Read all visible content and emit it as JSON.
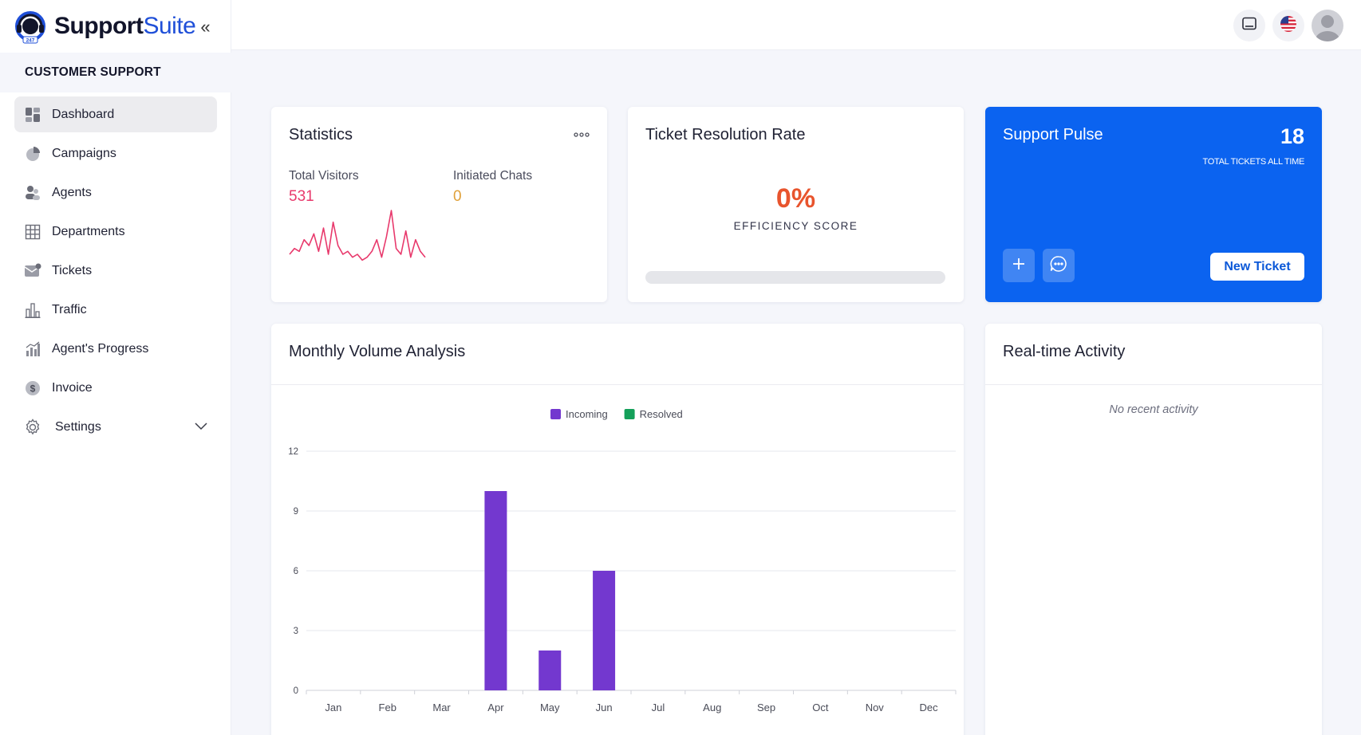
{
  "brand": {
    "name_part1": "Support",
    "name_part2": "Suite",
    "badge": "247"
  },
  "sidebar": {
    "section_title": "CUSTOMER SUPPORT",
    "items": [
      {
        "label": "Dashboard",
        "icon": "dashboard-icon"
      },
      {
        "label": "Campaigns",
        "icon": "pie-chart-icon"
      },
      {
        "label": "Agents",
        "icon": "users-icon"
      },
      {
        "label": "Departments",
        "icon": "grid-icon"
      },
      {
        "label": "Tickets",
        "icon": "envelope-icon"
      },
      {
        "label": "Traffic",
        "icon": "bar-chart-icon"
      },
      {
        "label": "Agent's Progress",
        "icon": "progress-chart-icon"
      },
      {
        "label": "Invoice",
        "icon": "dollar-icon"
      },
      {
        "label": "Settings",
        "icon": "gear-icon"
      }
    ]
  },
  "header": {
    "icons": [
      "tablet-icon",
      "us-flag-icon",
      "user-avatar"
    ]
  },
  "statistics": {
    "title": "Statistics",
    "total_visitors_label": "Total Visitors",
    "total_visitors_value": "531",
    "initiated_chats_label": "Initiated Chats",
    "initiated_chats_value": "0",
    "sparkline": [
      3,
      5,
      4,
      8,
      6,
      10,
      4,
      12,
      3,
      14,
      6,
      3,
      4,
      2,
      3,
      1,
      2,
      4,
      8,
      2,
      9,
      18,
      5,
      3,
      11,
      2,
      8,
      4,
      2
    ]
  },
  "resolution": {
    "title": "Ticket Resolution Rate",
    "value": "0%",
    "label": "EFFICIENCY SCORE",
    "progress_percent": 0
  },
  "pulse": {
    "title": "Support Pulse",
    "total": "18",
    "subtitle": "TOTAL TICKETS ALL TIME",
    "new_ticket_label": "New Ticket"
  },
  "monthly": {
    "title": "Monthly Volume Analysis"
  },
  "activity": {
    "title": "Real-time Activity",
    "empty_text": "No recent activity"
  },
  "colors": {
    "incoming": "#7338cf",
    "resolved": "#14a05a",
    "accent": "#0b63f0",
    "visitors": "#e8396c",
    "chats": "#e0a13a"
  },
  "chart_data": {
    "type": "bar",
    "categories": [
      "Jan",
      "Feb",
      "Mar",
      "Apr",
      "May",
      "Jun",
      "Jul",
      "Aug",
      "Sep",
      "Oct",
      "Nov",
      "Dec"
    ],
    "series": [
      {
        "name": "Incoming",
        "values": [
          0,
          0,
          0,
          10,
          2,
          6,
          0,
          0,
          0,
          0,
          0,
          0
        ]
      },
      {
        "name": "Resolved",
        "values": [
          0,
          0,
          0,
          0,
          0,
          0,
          0,
          0,
          0,
          0,
          0,
          0
        ]
      }
    ],
    "yticks": [
      0,
      3,
      6,
      9,
      12
    ],
    "ylim": [
      0,
      12
    ],
    "legend_position": "top-center",
    "grid": true
  }
}
